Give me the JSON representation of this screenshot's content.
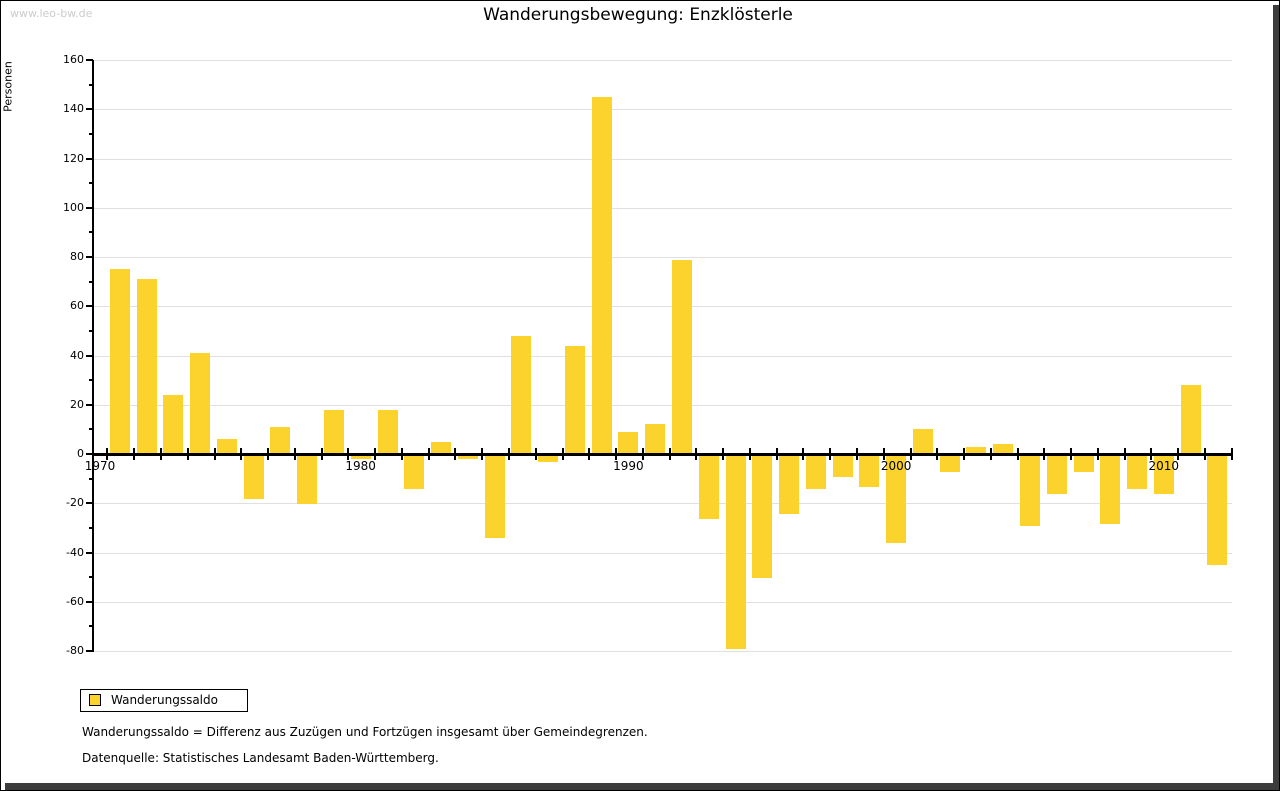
{
  "watermark": "www.leo-bw.de",
  "title": "Wanderungsbewegung: Enzklösterle",
  "legend": {
    "label": "Wanderungssaldo"
  },
  "footnotes": {
    "line1": "Wanderungssaldo = Differenz aus Zuzügen und Fortzügen insgesamt über Gemeindegrenzen.",
    "line2": "Datenquelle: Statistisches Landesamt Baden-Württemberg."
  },
  "colors": {
    "bar": "#fcd32c",
    "grid": "#e0e0e0",
    "axis": "#000000",
    "watermark": "#cccccc",
    "frame_shadow": "#3c3c3c"
  },
  "chart_data": {
    "type": "bar",
    "title": "Wanderungsbewegung: Enzklösterle",
    "xlabel": "",
    "ylabel": "Personen",
    "ylim": [
      -80,
      160
    ],
    "ytick_step": 20,
    "ytick_minor_step": 10,
    "grid": "horizontal-major",
    "legend_position": "bottom-left",
    "xticks": [
      1970,
      1980,
      1990,
      2000,
      2010
    ],
    "series_name": "Wanderungssaldo",
    "years": [
      1971,
      1972,
      1973,
      1974,
      1975,
      1976,
      1977,
      1978,
      1979,
      1980,
      1981,
      1982,
      1983,
      1984,
      1985,
      1986,
      1987,
      1988,
      1989,
      1990,
      1991,
      1992,
      1993,
      1994,
      1995,
      1996,
      1997,
      1998,
      1999,
      2000,
      2001,
      2002,
      2003,
      2004,
      2005,
      2006,
      2007,
      2008,
      2009,
      2010,
      2011,
      2012
    ],
    "values": [
      75,
      71,
      24,
      41,
      6,
      -18,
      11,
      -20,
      18,
      -2,
      18,
      -14,
      5,
      -2,
      -34,
      48,
      -3,
      44,
      145,
      9,
      12,
      79,
      -26,
      -79,
      -50,
      -24,
      -14,
      -9,
      -13,
      -36,
      10,
      -7,
      3,
      4,
      -29,
      -16,
      -7,
      -28,
      -14,
      -16,
      28,
      -45
    ]
  }
}
